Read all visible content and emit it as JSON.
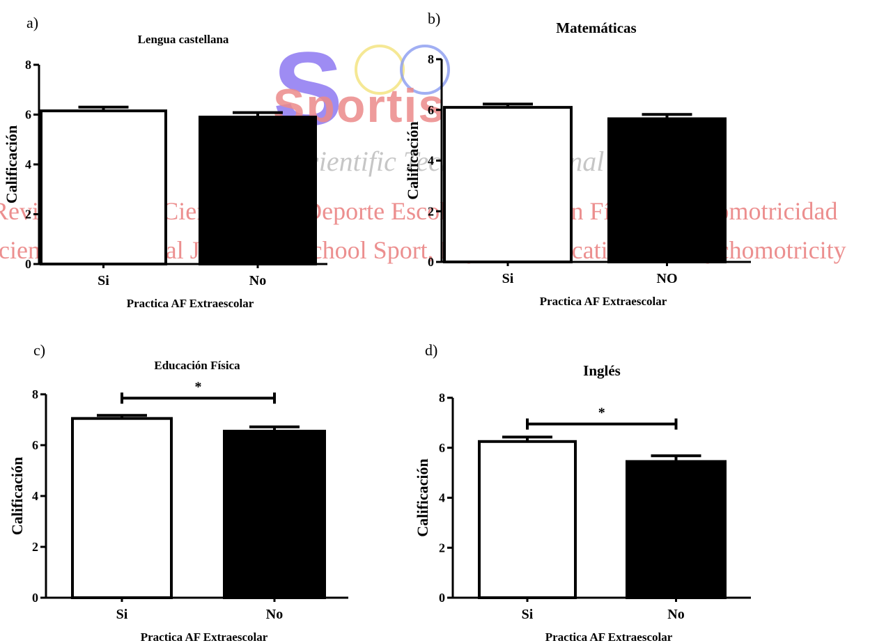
{
  "watermark": {
    "logo_text": "Sportis",
    "line1": "Revista Técnico-Científica del Deporte Escolar, Educación Física y Psicomotricidad",
    "line2": "Scientific Technical Journal of School Sport, Physical Education and Psychomotricity",
    "tagline": "Scientific Technical Journal",
    "colors": {
      "logo_s": "#8e78f2",
      "logo_rest": "#ec8a8a",
      "lines": "#e97c7c",
      "ring_yellow": "#f3e27a",
      "ring_blue": "#8a9bf0"
    }
  },
  "chart_data": [
    {
      "panel_label": "a)",
      "type": "bar",
      "title": "Lengua castellana",
      "xlabel": "Practica AF Extraescolar",
      "ylabel": "Calificación",
      "ylim": [
        0,
        8
      ],
      "yticks": [
        "0",
        "2",
        "4",
        "6",
        "8"
      ],
      "categories": [
        "Si",
        "No"
      ],
      "values": [
        6.15,
        5.9
      ],
      "errors": [
        0.15,
        0.18
      ],
      "bar_colors": [
        "#ffffff",
        "#000000"
      ],
      "significance": null
    },
    {
      "panel_label": "b)",
      "type": "bar",
      "title": "Matemáticas",
      "xlabel": "Practica AF Extraescolar",
      "ylabel": "Calificación",
      "ylim": [
        0,
        8
      ],
      "yticks": [
        "0",
        "2",
        "4",
        "6",
        "8"
      ],
      "categories": [
        "Si",
        "NO"
      ],
      "values": [
        6.1,
        5.65
      ],
      "errors": [
        0.13,
        0.17
      ],
      "bar_colors": [
        "#ffffff",
        "#000000"
      ],
      "significance": null
    },
    {
      "panel_label": "c)",
      "type": "bar",
      "title": "Educación Física",
      "xlabel": "Practica AF Extraescolar",
      "ylabel": "Calificación",
      "ylim": [
        0,
        8
      ],
      "yticks": [
        "0",
        "2",
        "4",
        "6",
        "8"
      ],
      "categories": [
        "Si",
        "No"
      ],
      "values": [
        7.05,
        6.55
      ],
      "errors": [
        0.12,
        0.17
      ],
      "bar_colors": [
        "#ffffff",
        "#000000"
      ],
      "significance": {
        "label": "*",
        "bracket_y": 7.85
      }
    },
    {
      "panel_label": "d)",
      "type": "bar",
      "title": "Inglés",
      "xlabel": "Practica AF Extraescolar",
      "ylabel": "Calificación",
      "ylim": [
        0,
        8
      ],
      "yticks": [
        "0",
        "2",
        "4",
        "6",
        "8"
      ],
      "categories": [
        "Si",
        "No"
      ],
      "values": [
        6.25,
        5.45
      ],
      "errors": [
        0.18,
        0.23
      ],
      "bar_colors": [
        "#ffffff",
        "#000000"
      ],
      "significance": {
        "label": "*",
        "bracket_y": 6.95
      }
    }
  ]
}
